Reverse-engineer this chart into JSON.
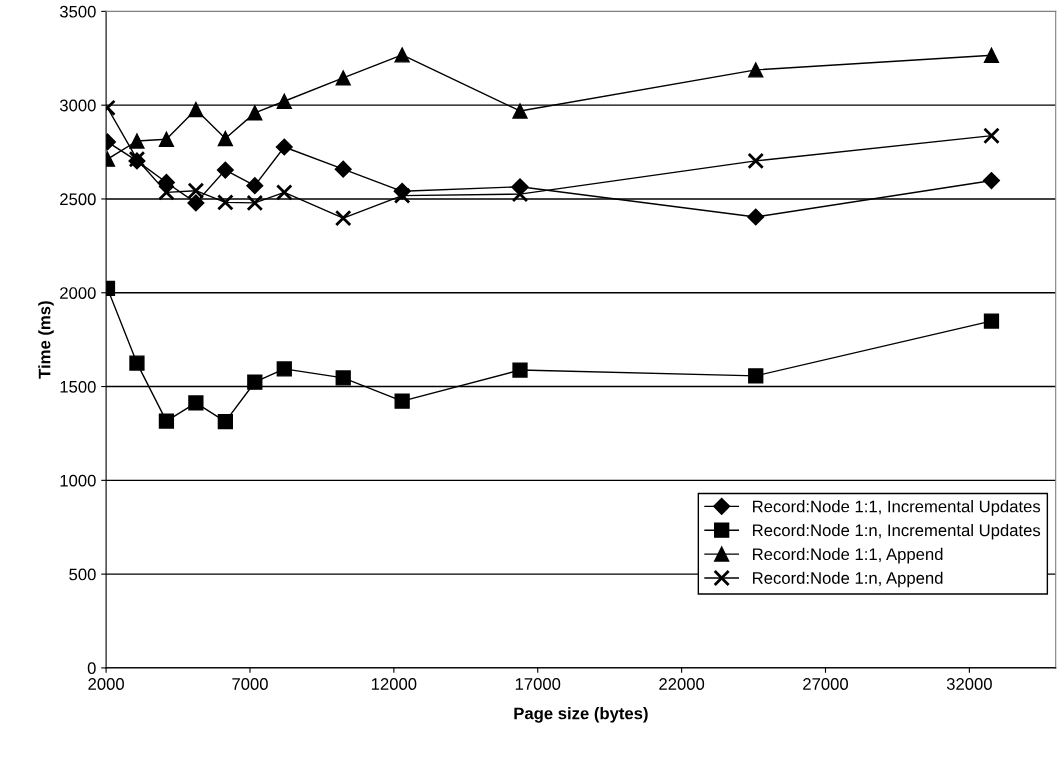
{
  "chart_data": {
    "type": "line",
    "xlabel": "Page size (bytes)",
    "ylabel": "Time (ms)",
    "x": [
      2048,
      3072,
      4096,
      5120,
      6144,
      7168,
      8192,
      10240,
      12288,
      16384,
      24576,
      32768
    ],
    "series": [
      {
        "name": "Record:Node 1:1, Incremental Updates",
        "color": "#000000",
        "marker": "diamond",
        "values": [
          2804,
          2703,
          2588,
          2479,
          2654,
          2571,
          2777,
          2659,
          2541,
          2565,
          2404,
          2598
        ]
      },
      {
        "name": "Record:Node 1:n, Incremental Updates",
        "color": "#000000",
        "marker": "square",
        "values": [
          2023,
          1625,
          1316,
          1413,
          1313,
          1523,
          1594,
          1546,
          1422,
          1588,
          1557,
          1849
        ]
      },
      {
        "name": "Record:Node 1:1, Append",
        "color": "#000000",
        "marker": "triangle",
        "values": [
          2712,
          2809,
          2818,
          2977,
          2822,
          2959,
          3021,
          3145,
          3268,
          2969,
          3188,
          3266
        ]
      },
      {
        "name": "Record:Node 1:n, Append",
        "color": "#000000",
        "marker": "cross",
        "values": [
          2986,
          2712,
          2535,
          2544,
          2482,
          2479,
          2535,
          2398,
          2518,
          2526,
          2703,
          2837
        ]
      }
    ],
    "xlim": [
      2000,
      35000
    ],
    "xticks": [
      2000,
      7000,
      12000,
      17000,
      22000,
      27000,
      32000
    ],
    "ylim": [
      0,
      3500
    ],
    "yticks": [
      0,
      500,
      1000,
      1500,
      2000,
      2500,
      3000,
      3500
    ],
    "grid": "y",
    "legend": "bottom right",
    "line_style": "solid"
  }
}
